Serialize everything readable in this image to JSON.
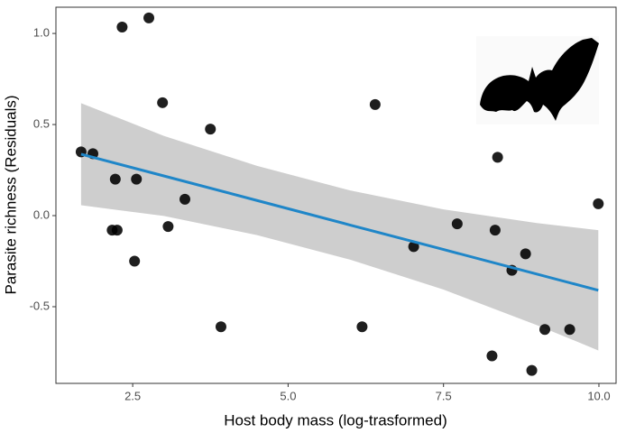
{
  "chart_data": {
    "type": "scatter",
    "x_label": "Host body mass (log-trasformed)",
    "y_label": "Parasite richness (Residuals)",
    "x": [
      1.67,
      1.86,
      2.22,
      2.56,
      2.17,
      2.25,
      2.53,
      2.33,
      2.76,
      2.98,
      3.07,
      3.34,
      3.75,
      3.92,
      6.19,
      6.4,
      7.02,
      7.72,
      8.37,
      8.33,
      8.28,
      8.6,
      8.82,
      8.92,
      9.13,
      9.53,
      9.99
    ],
    "values": [
      0.35,
      0.34,
      0.2,
      0.2,
      -0.08,
      -0.08,
      -0.25,
      1.035,
      1.085,
      0.62,
      -0.06,
      0.09,
      0.475,
      -0.61,
      -0.61,
      0.61,
      -0.17,
      -0.045,
      0.32,
      -0.08,
      -0.77,
      -0.3,
      -0.21,
      -0.85,
      -0.625,
      -0.625,
      0.065
    ],
    "color": "#000000",
    "fit": {
      "x": [
        1.67,
        3,
        4.5,
        6,
        7.5,
        9,
        9.99
      ],
      "y": [
        0.337,
        0.218,
        0.083,
        -0.052,
        -0.186,
        -0.321,
        -0.41
      ],
      "upper": [
        0.617,
        0.438,
        0.273,
        0.138,
        0.034,
        -0.041,
        -0.08
      ],
      "lower": [
        0.057,
        -0.002,
        -0.107,
        -0.242,
        -0.406,
        -0.601,
        -0.74
      ],
      "color": "#1f86c8",
      "band_color": "#bebebe"
    },
    "xlim": [
      1.265,
      10.276
    ],
    "ylim": [
      -0.921,
      1.144
    ],
    "xticks": [
      2.5,
      {
        "value": 5,
        "label": "5.0"
      },
      7.5,
      {
        "value": 10,
        "label": "10.0"
      }
    ],
    "yticks": [
      -0.5,
      {
        "value": 0,
        "label": "0.0"
      },
      0.5,
      {
        "value": 1,
        "label": "1.0"
      }
    ]
  }
}
